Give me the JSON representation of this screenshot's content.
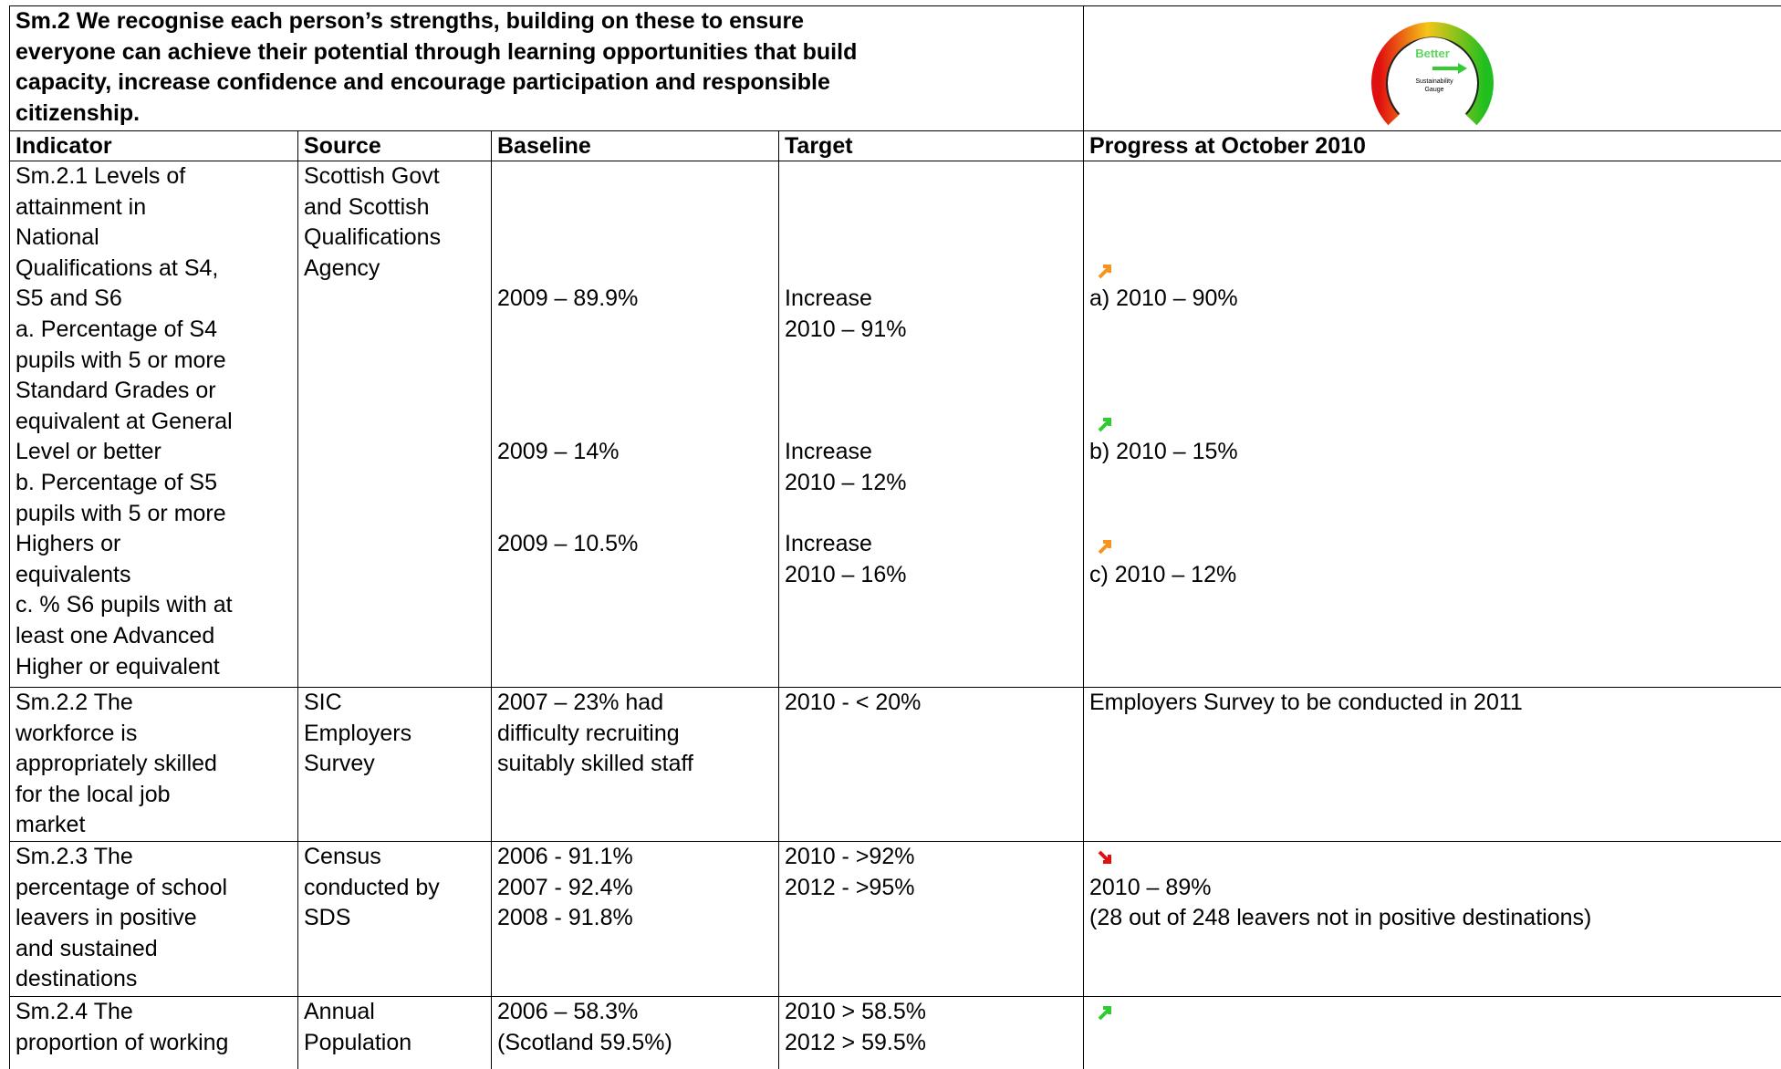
{
  "title": [
    "Sm.2  We recognise each person’s strengths, building on these to ensure",
    "everyone can achieve their potential through learning opportunities that build",
    "capacity, increase confidence and encourage participation and responsible",
    "citizenship."
  ],
  "gauge": {
    "label": "Better",
    "caption": [
      "Sustainability",
      "Gauge"
    ]
  },
  "headers": [
    "Indicator",
    "Source",
    "Baseline",
    "Target",
    "Progress at October 2010"
  ],
  "rows": [
    {
      "indicator": [
        "Sm.2.1 Levels of",
        "attainment in",
        "National",
        "Qualifications at S4,",
        "S5 and S6",
        "a. Percentage of S4",
        "pupils with 5 or more",
        "Standard Grades or",
        "equivalent at General",
        "Level or better",
        "b. Percentage of S5",
        "pupils with 5 or more",
        "Highers or",
        "equivalents",
        "c. % S6 pupils with at",
        "least one Advanced",
        "Higher or equivalent"
      ],
      "source": [
        "Scottish Govt",
        "and Scottish",
        "Qualifications",
        "Agency"
      ],
      "baseline": [
        "2009 – 89.9%",
        "2009 – 14%",
        "2009 – 10.5%"
      ],
      "target": [
        "Increase",
        "2010 – 91%",
        "Increase",
        "2010 – 12%",
        "Increase",
        "2010 – 16%"
      ],
      "progress": [
        "a) 2010 – 90%",
        "b) 2010 – 15%",
        "c) 2010 – 12%"
      ]
    },
    {
      "indicator": [
        "Sm.2.2 The",
        "workforce is",
        "appropriately skilled",
        "for the local job",
        "market"
      ],
      "source": [
        "SIC",
        "Employers",
        "Survey"
      ],
      "baseline": [
        "2007 – 23% had",
        "difficulty recruiting",
        "suitably skilled staff"
      ],
      "target": [
        "2010 - < 20%"
      ],
      "progress": [
        "Employers Survey to be conducted in 2011"
      ]
    },
    {
      "indicator": [
        "Sm.2.3 The",
        "percentage of school",
        "leavers in positive",
        "and sustained",
        "destinations"
      ],
      "source": [
        "Census",
        "conducted by",
        "SDS"
      ],
      "baseline": [
        "2006 - 91.1%",
        "2007 - 92.4%",
        "2008 - 91.8%"
      ],
      "target": [
        "2010 - >92%",
        "2012 - >95%"
      ],
      "progress": [
        "2010 – 89%",
        "(28 out of 248 leavers not in positive destinations)"
      ]
    },
    {
      "indicator": [
        "Sm.2.4 The",
        "proportion of working"
      ],
      "source": [
        "Annual",
        "Population"
      ],
      "baseline": [
        "2006 – 58.3%",
        "(Scotland 59.5%)"
      ],
      "target": [
        "2010 > 58.5%",
        "2012 > 59.5%"
      ]
    }
  ]
}
